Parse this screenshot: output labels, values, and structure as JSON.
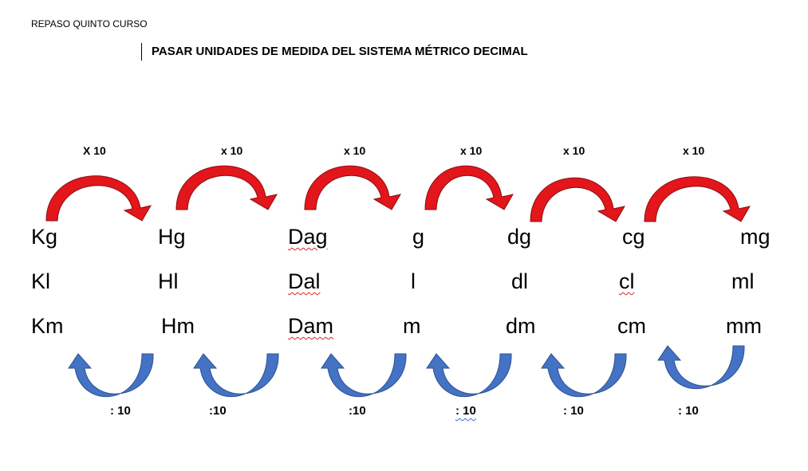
{
  "header": {
    "course": "REPASO QUINTO CURSO"
  },
  "title": "PASAR UNIDADES DE MEDIDA DEL SISTEMA MÉTRICO DECIMAL",
  "multiply_labels": [
    "X 10",
    "x 10",
    "x 10",
    "x 10",
    "x 10",
    "x 10"
  ],
  "divide_labels": [
    ": 10",
    ":10",
    ":10",
    ": 10",
    ": 10",
    ": 10"
  ],
  "rows": {
    "mass": [
      "Kg",
      "Hg",
      "Dag",
      "g",
      "dg",
      "cg",
      "mg"
    ],
    "volume": [
      "Kl",
      "Hl",
      "Dal",
      "l",
      "dl",
      "cl",
      "ml"
    ],
    "length": [
      "Km",
      "Hm",
      "Dam",
      "m",
      "dm",
      "cm",
      "mm"
    ]
  },
  "colors": {
    "multiply_arrow": "#e3161b",
    "divide_arrow": "#4472c4"
  }
}
